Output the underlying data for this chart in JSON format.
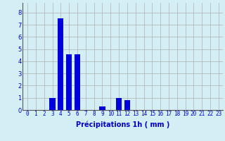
{
  "categories": [
    0,
    1,
    2,
    3,
    4,
    5,
    6,
    7,
    8,
    9,
    10,
    11,
    12,
    13,
    14,
    15,
    16,
    17,
    18,
    19,
    20,
    21,
    22,
    23
  ],
  "values": [
    0,
    0,
    0,
    1.0,
    7.5,
    4.6,
    4.6,
    0,
    0,
    0.3,
    0,
    1.0,
    0.8,
    0,
    0,
    0,
    0,
    0,
    0,
    0,
    0,
    0,
    0,
    0
  ],
  "bar_color": "#0000dd",
  "background_color": "#d4eef5",
  "grid_color": "#b0b0b0",
  "xlabel": "Précipitations 1h ( mm )",
  "xlabel_color": "#0000cc",
  "xlabel_fontsize": 7,
  "tick_color": "#0000cc",
  "tick_fontsize": 5.5,
  "ylabel_ticks": [
    0,
    1,
    2,
    3,
    4,
    5,
    6,
    7,
    8
  ],
  "ylim": [
    0,
    8.8
  ],
  "xlim": [
    -0.6,
    23.5
  ],
  "bar_width": 0.7
}
